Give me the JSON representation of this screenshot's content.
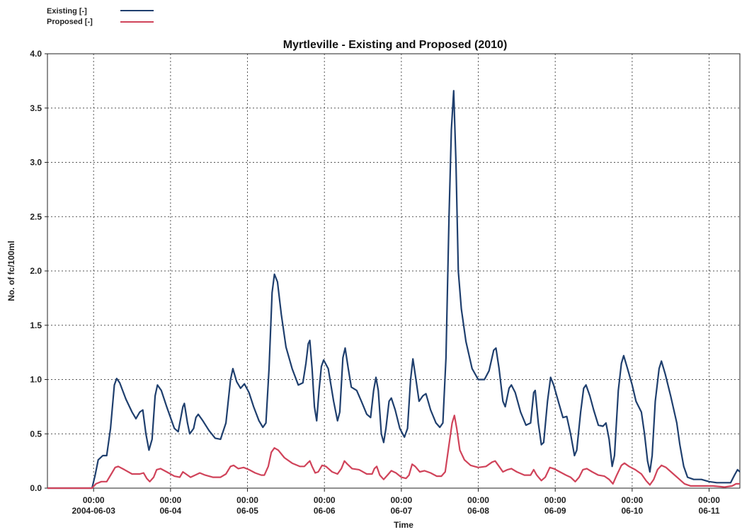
{
  "chart_data": {
    "type": "line",
    "title": "Myrtleville - Existing and Proposed (2010)",
    "xlabel": "Time",
    "ylabel": "No. of fc/100ml",
    "ylim": [
      0,
      4.0
    ],
    "xlim_days": [
      -0.6,
      8.4
    ],
    "yticks": [
      "0.0",
      "0.5",
      "1.0",
      "1.5",
      "2.0",
      "2.5",
      "3.0",
      "3.5",
      "4.0"
    ],
    "xticks": [
      {
        "time": "00:00",
        "date": "2004-06-03"
      },
      {
        "time": "00:00",
        "date": "06-04"
      },
      {
        "time": "00:00",
        "date": "06-05"
      },
      {
        "time": "00:00",
        "date": "06-06"
      },
      {
        "time": "00:00",
        "date": "06-07"
      },
      {
        "time": "00:00",
        "date": "06-08"
      },
      {
        "time": "00:00",
        "date": "06-09"
      },
      {
        "time": "00:00",
        "date": "06-10"
      },
      {
        "time": "00:00",
        "date": "06-11"
      }
    ],
    "grid": true,
    "legend_position": "top-left",
    "series": [
      {
        "name": "Existing [-]",
        "color": "#1f3f6e",
        "points": [
          [
            -0.6,
            0.0
          ],
          [
            -0.02,
            0.0
          ],
          [
            0.02,
            0.12
          ],
          [
            0.06,
            0.26
          ],
          [
            0.12,
            0.3
          ],
          [
            0.17,
            0.3
          ],
          [
            0.22,
            0.55
          ],
          [
            0.27,
            0.95
          ],
          [
            0.3,
            1.01
          ],
          [
            0.34,
            0.97
          ],
          [
            0.42,
            0.82
          ],
          [
            0.5,
            0.7
          ],
          [
            0.55,
            0.64
          ],
          [
            0.6,
            0.7
          ],
          [
            0.64,
            0.72
          ],
          [
            0.68,
            0.5
          ],
          [
            0.72,
            0.35
          ],
          [
            0.76,
            0.45
          ],
          [
            0.8,
            0.85
          ],
          [
            0.83,
            0.95
          ],
          [
            0.88,
            0.9
          ],
          [
            0.95,
            0.75
          ],
          [
            1.05,
            0.55
          ],
          [
            1.1,
            0.52
          ],
          [
            1.16,
            0.75
          ],
          [
            1.18,
            0.78
          ],
          [
            1.22,
            0.6
          ],
          [
            1.25,
            0.5
          ],
          [
            1.3,
            0.55
          ],
          [
            1.33,
            0.65
          ],
          [
            1.36,
            0.68
          ],
          [
            1.42,
            0.62
          ],
          [
            1.5,
            0.53
          ],
          [
            1.58,
            0.46
          ],
          [
            1.65,
            0.45
          ],
          [
            1.72,
            0.6
          ],
          [
            1.78,
            1.0
          ],
          [
            1.81,
            1.1
          ],
          [
            1.86,
            0.98
          ],
          [
            1.91,
            0.92
          ],
          [
            1.96,
            0.96
          ],
          [
            2.02,
            0.88
          ],
          [
            2.08,
            0.75
          ],
          [
            2.15,
            0.62
          ],
          [
            2.2,
            0.56
          ],
          [
            2.24,
            0.6
          ],
          [
            2.28,
            1.1
          ],
          [
            2.32,
            1.8
          ],
          [
            2.35,
            1.97
          ],
          [
            2.39,
            1.9
          ],
          [
            2.44,
            1.6
          ],
          [
            2.5,
            1.3
          ],
          [
            2.58,
            1.1
          ],
          [
            2.66,
            0.95
          ],
          [
            2.72,
            0.97
          ],
          [
            2.76,
            1.15
          ],
          [
            2.79,
            1.33
          ],
          [
            2.81,
            1.36
          ],
          [
            2.84,
            1.1
          ],
          [
            2.87,
            0.75
          ],
          [
            2.9,
            0.62
          ],
          [
            2.93,
            0.9
          ],
          [
            2.96,
            1.12
          ],
          [
            2.99,
            1.18
          ],
          [
            3.05,
            1.1
          ],
          [
            3.12,
            0.8
          ],
          [
            3.17,
            0.62
          ],
          [
            3.2,
            0.7
          ],
          [
            3.24,
            1.2
          ],
          [
            3.27,
            1.29
          ],
          [
            3.31,
            1.1
          ],
          [
            3.35,
            0.93
          ],
          [
            3.42,
            0.9
          ],
          [
            3.48,
            0.8
          ],
          [
            3.55,
            0.68
          ],
          [
            3.6,
            0.65
          ],
          [
            3.64,
            0.9
          ],
          [
            3.67,
            1.02
          ],
          [
            3.7,
            0.9
          ],
          [
            3.74,
            0.5
          ],
          [
            3.77,
            0.42
          ],
          [
            3.8,
            0.55
          ],
          [
            3.84,
            0.8
          ],
          [
            3.87,
            0.83
          ],
          [
            3.92,
            0.72
          ],
          [
            3.98,
            0.55
          ],
          [
            4.04,
            0.47
          ],
          [
            4.08,
            0.55
          ],
          [
            4.12,
            1.0
          ],
          [
            4.15,
            1.19
          ],
          [
            4.19,
            1.0
          ],
          [
            4.23,
            0.8
          ],
          [
            4.28,
            0.85
          ],
          [
            4.32,
            0.87
          ],
          [
            4.38,
            0.72
          ],
          [
            4.45,
            0.6
          ],
          [
            4.5,
            0.56
          ],
          [
            4.54,
            0.6
          ],
          [
            4.58,
            1.2
          ],
          [
            4.62,
            2.5
          ],
          [
            4.65,
            3.3
          ],
          [
            4.68,
            3.66
          ],
          [
            4.71,
            3.0
          ],
          [
            4.74,
            2.0
          ],
          [
            4.78,
            1.65
          ],
          [
            4.84,
            1.35
          ],
          [
            4.92,
            1.1
          ],
          [
            5.0,
            1.0
          ],
          [
            5.08,
            1.0
          ],
          [
            5.14,
            1.08
          ],
          [
            5.2,
            1.27
          ],
          [
            5.23,
            1.29
          ],
          [
            5.27,
            1.1
          ],
          [
            5.32,
            0.8
          ],
          [
            5.35,
            0.75
          ],
          [
            5.4,
            0.92
          ],
          [
            5.43,
            0.95
          ],
          [
            5.48,
            0.88
          ],
          [
            5.55,
            0.7
          ],
          [
            5.62,
            0.58
          ],
          [
            5.68,
            0.6
          ],
          [
            5.72,
            0.88
          ],
          [
            5.74,
            0.9
          ],
          [
            5.78,
            0.6
          ],
          [
            5.82,
            0.4
          ],
          [
            5.85,
            0.42
          ],
          [
            5.9,
            0.8
          ],
          [
            5.94,
            1.02
          ],
          [
            5.98,
            0.95
          ],
          [
            6.04,
            0.8
          ],
          [
            6.1,
            0.65
          ],
          [
            6.15,
            0.66
          ],
          [
            6.2,
            0.5
          ],
          [
            6.25,
            0.3
          ],
          [
            6.28,
            0.35
          ],
          [
            6.33,
            0.7
          ],
          [
            6.37,
            0.92
          ],
          [
            6.4,
            0.95
          ],
          [
            6.45,
            0.85
          ],
          [
            6.5,
            0.72
          ],
          [
            6.56,
            0.58
          ],
          [
            6.62,
            0.57
          ],
          [
            6.66,
            0.6
          ],
          [
            6.7,
            0.45
          ],
          [
            6.74,
            0.2
          ],
          [
            6.77,
            0.3
          ],
          [
            6.82,
            0.9
          ],
          [
            6.86,
            1.15
          ],
          [
            6.89,
            1.22
          ],
          [
            6.94,
            1.1
          ],
          [
            7.0,
            0.95
          ],
          [
            7.05,
            0.8
          ],
          [
            7.12,
            0.7
          ],
          [
            7.16,
            0.5
          ],
          [
            7.2,
            0.25
          ],
          [
            7.23,
            0.15
          ],
          [
            7.26,
            0.3
          ],
          [
            7.3,
            0.8
          ],
          [
            7.35,
            1.1
          ],
          [
            7.38,
            1.17
          ],
          [
            7.43,
            1.05
          ],
          [
            7.5,
            0.85
          ],
          [
            7.58,
            0.6
          ],
          [
            7.62,
            0.4
          ],
          [
            7.67,
            0.2
          ],
          [
            7.72,
            0.1
          ],
          [
            7.8,
            0.08
          ],
          [
            7.9,
            0.08
          ],
          [
            8.0,
            0.06
          ],
          [
            8.1,
            0.05
          ],
          [
            8.2,
            0.05
          ],
          [
            8.28,
            0.05
          ],
          [
            8.33,
            0.12
          ],
          [
            8.37,
            0.17
          ],
          [
            8.4,
            0.15
          ]
        ]
      },
      {
        "name": "Proposed [-]",
        "color": "#d0435a",
        "points": [
          [
            -0.6,
            0.0
          ],
          [
            -0.02,
            0.0
          ],
          [
            0.03,
            0.04
          ],
          [
            0.1,
            0.06
          ],
          [
            0.17,
            0.06
          ],
          [
            0.23,
            0.13
          ],
          [
            0.28,
            0.19
          ],
          [
            0.32,
            0.2
          ],
          [
            0.4,
            0.17
          ],
          [
            0.5,
            0.13
          ],
          [
            0.6,
            0.13
          ],
          [
            0.65,
            0.14
          ],
          [
            0.69,
            0.09
          ],
          [
            0.73,
            0.06
          ],
          [
            0.78,
            0.1
          ],
          [
            0.82,
            0.17
          ],
          [
            0.87,
            0.18
          ],
          [
            0.95,
            0.15
          ],
          [
            1.05,
            0.11
          ],
          [
            1.12,
            0.1
          ],
          [
            1.16,
            0.15
          ],
          [
            1.2,
            0.13
          ],
          [
            1.26,
            0.1
          ],
          [
            1.32,
            0.12
          ],
          [
            1.38,
            0.14
          ],
          [
            1.45,
            0.12
          ],
          [
            1.55,
            0.1
          ],
          [
            1.65,
            0.1
          ],
          [
            1.72,
            0.13
          ],
          [
            1.78,
            0.2
          ],
          [
            1.82,
            0.21
          ],
          [
            1.88,
            0.18
          ],
          [
            1.95,
            0.19
          ],
          [
            2.02,
            0.17
          ],
          [
            2.1,
            0.14
          ],
          [
            2.18,
            0.12
          ],
          [
            2.22,
            0.12
          ],
          [
            2.27,
            0.2
          ],
          [
            2.31,
            0.33
          ],
          [
            2.35,
            0.37
          ],
          [
            2.4,
            0.35
          ],
          [
            2.48,
            0.28
          ],
          [
            2.58,
            0.23
          ],
          [
            2.68,
            0.2
          ],
          [
            2.74,
            0.2
          ],
          [
            2.78,
            0.23
          ],
          [
            2.81,
            0.25
          ],
          [
            2.84,
            0.2
          ],
          [
            2.88,
            0.14
          ],
          [
            2.92,
            0.15
          ],
          [
            2.97,
            0.21
          ],
          [
            3.02,
            0.2
          ],
          [
            3.1,
            0.15
          ],
          [
            3.17,
            0.13
          ],
          [
            3.22,
            0.18
          ],
          [
            3.26,
            0.25
          ],
          [
            3.3,
            0.22
          ],
          [
            3.36,
            0.18
          ],
          [
            3.45,
            0.17
          ],
          [
            3.55,
            0.13
          ],
          [
            3.62,
            0.13
          ],
          [
            3.65,
            0.18
          ],
          [
            3.68,
            0.2
          ],
          [
            3.72,
            0.12
          ],
          [
            3.77,
            0.08
          ],
          [
            3.82,
            0.12
          ],
          [
            3.87,
            0.16
          ],
          [
            3.93,
            0.14
          ],
          [
            4.0,
            0.1
          ],
          [
            4.06,
            0.09
          ],
          [
            4.1,
            0.12
          ],
          [
            4.14,
            0.22
          ],
          [
            4.18,
            0.2
          ],
          [
            4.24,
            0.15
          ],
          [
            4.3,
            0.16
          ],
          [
            4.38,
            0.14
          ],
          [
            4.46,
            0.11
          ],
          [
            4.52,
            0.11
          ],
          [
            4.57,
            0.15
          ],
          [
            4.62,
            0.4
          ],
          [
            4.66,
            0.6
          ],
          [
            4.69,
            0.67
          ],
          [
            4.72,
            0.55
          ],
          [
            4.76,
            0.35
          ],
          [
            4.82,
            0.26
          ],
          [
            4.9,
            0.21
          ],
          [
            5.0,
            0.19
          ],
          [
            5.1,
            0.2
          ],
          [
            5.18,
            0.24
          ],
          [
            5.22,
            0.25
          ],
          [
            5.27,
            0.2
          ],
          [
            5.32,
            0.15
          ],
          [
            5.38,
            0.17
          ],
          [
            5.43,
            0.18
          ],
          [
            5.5,
            0.15
          ],
          [
            5.6,
            0.12
          ],
          [
            5.68,
            0.12
          ],
          [
            5.72,
            0.17
          ],
          [
            5.76,
            0.12
          ],
          [
            5.82,
            0.07
          ],
          [
            5.87,
            0.1
          ],
          [
            5.93,
            0.19
          ],
          [
            5.98,
            0.18
          ],
          [
            6.06,
            0.15
          ],
          [
            6.14,
            0.12
          ],
          [
            6.2,
            0.1
          ],
          [
            6.26,
            0.06
          ],
          [
            6.31,
            0.1
          ],
          [
            6.36,
            0.17
          ],
          [
            6.41,
            0.18
          ],
          [
            6.48,
            0.15
          ],
          [
            6.56,
            0.12
          ],
          [
            6.64,
            0.11
          ],
          [
            6.7,
            0.08
          ],
          [
            6.75,
            0.04
          ],
          [
            6.8,
            0.12
          ],
          [
            6.86,
            0.21
          ],
          [
            6.9,
            0.23
          ],
          [
            6.96,
            0.2
          ],
          [
            7.04,
            0.17
          ],
          [
            7.12,
            0.13
          ],
          [
            7.18,
            0.07
          ],
          [
            7.23,
            0.03
          ],
          [
            7.28,
            0.08
          ],
          [
            7.33,
            0.17
          ],
          [
            7.38,
            0.21
          ],
          [
            7.44,
            0.19
          ],
          [
            7.52,
            0.14
          ],
          [
            7.6,
            0.09
          ],
          [
            7.68,
            0.04
          ],
          [
            7.76,
            0.02
          ],
          [
            7.9,
            0.02
          ],
          [
            8.05,
            0.02
          ],
          [
            8.2,
            0.01
          ],
          [
            8.3,
            0.02
          ],
          [
            8.35,
            0.04
          ],
          [
            8.4,
            0.04
          ]
        ]
      }
    ]
  }
}
